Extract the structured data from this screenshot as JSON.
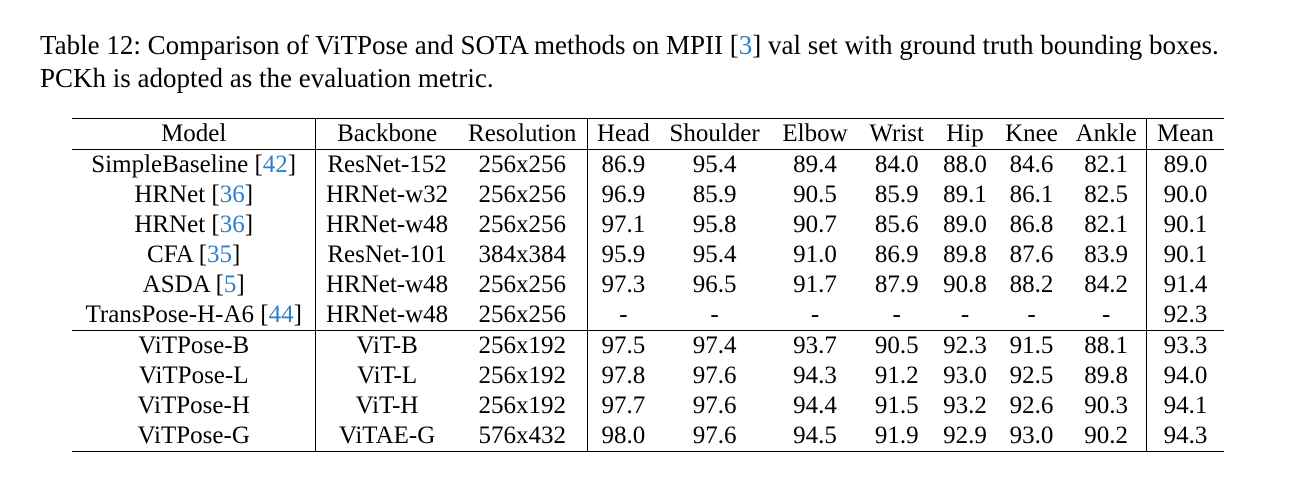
{
  "caption": {
    "prefix": "Table 12: Comparison of ViTPose and SOTA methods on MPII [",
    "cite": "3",
    "suffix": "] val set with ground truth bounding boxes. PCKh is adopted as the evaluation metric."
  },
  "headers": [
    "Model",
    "Backbone",
    "Resolution",
    "Head",
    "Shoulder",
    "Elbow",
    "Wrist",
    "Hip",
    "Knee",
    "Ankle",
    "Mean"
  ],
  "rows": [
    {
      "model": "SimpleBaseline",
      "cite": "42",
      "backbone": "ResNet-152",
      "resolution": "256x256",
      "head": "86.9",
      "shoulder": "95.4",
      "elbow": "89.4",
      "wrist": "84.0",
      "hip": "88.0",
      "knee": "84.6",
      "ankle": "82.1",
      "mean": "89.0"
    },
    {
      "model": "HRNet",
      "cite": "36",
      "backbone": "HRNet-w32",
      "resolution": "256x256",
      "head": "96.9",
      "shoulder": "85.9",
      "elbow": "90.5",
      "wrist": "85.9",
      "hip": "89.1",
      "knee": "86.1",
      "ankle": "82.5",
      "mean": "90.0"
    },
    {
      "model": "HRNet",
      "cite": "36",
      "backbone": "HRNet-w48",
      "resolution": "256x256",
      "head": "97.1",
      "shoulder": "95.8",
      "elbow": "90.7",
      "wrist": "85.6",
      "hip": "89.0",
      "knee": "86.8",
      "ankle": "82.1",
      "mean": "90.1"
    },
    {
      "model": "CFA",
      "cite": "35",
      "backbone": "ResNet-101",
      "resolution": "384x384",
      "head": "95.9",
      "shoulder": "95.4",
      "elbow": "91.0",
      "wrist": "86.9",
      "hip": "89.8",
      "knee": "87.6",
      "ankle": "83.9",
      "mean": "90.1"
    },
    {
      "model": "ASDA",
      "cite": "5",
      "backbone": "HRNet-w48",
      "resolution": "256x256",
      "head": "97.3",
      "shoulder": "96.5",
      "elbow": "91.7",
      "wrist": "87.9",
      "hip": "90.8",
      "knee": "88.2",
      "ankle": "84.2",
      "mean": "91.4"
    },
    {
      "model": "TransPose-H-A6",
      "cite": "44",
      "backbone": "HRNet-w48",
      "resolution": "256x256",
      "head": "-",
      "shoulder": "-",
      "elbow": "-",
      "wrist": "-",
      "hip": "-",
      "knee": "-",
      "ankle": "-",
      "mean": "92.3"
    },
    {
      "model": "ViTPose-B",
      "cite": "",
      "backbone": "ViT-B",
      "resolution": "256x192",
      "head": "97.5",
      "shoulder": "97.4",
      "elbow": "93.7",
      "wrist": "90.5",
      "hip": "92.3",
      "knee": "91.5",
      "ankle": "88.1",
      "mean": "93.3"
    },
    {
      "model": "ViTPose-L",
      "cite": "",
      "backbone": "ViT-L",
      "resolution": "256x192",
      "head": "97.8",
      "shoulder": "97.6",
      "elbow": "94.3",
      "wrist": "91.2",
      "hip": "93.0",
      "knee": "92.5",
      "ankle": "89.8",
      "mean": "94.0"
    },
    {
      "model": "ViTPose-H",
      "cite": "",
      "backbone": "ViT-H",
      "resolution": "256x192",
      "head": "97.7",
      "shoulder": "97.6",
      "elbow": "94.4",
      "wrist": "91.5",
      "hip": "93.2",
      "knee": "92.6",
      "ankle": "90.3",
      "mean": "94.1"
    },
    {
      "model": "ViTPose-G",
      "cite": "",
      "backbone": "ViTAE-G",
      "resolution": "576x432",
      "head": "98.0",
      "shoulder": "97.6",
      "elbow": "94.5",
      "wrist": "91.9",
      "hip": "92.9",
      "knee": "93.0",
      "ankle": "90.2",
      "mean": "94.3"
    }
  ]
}
